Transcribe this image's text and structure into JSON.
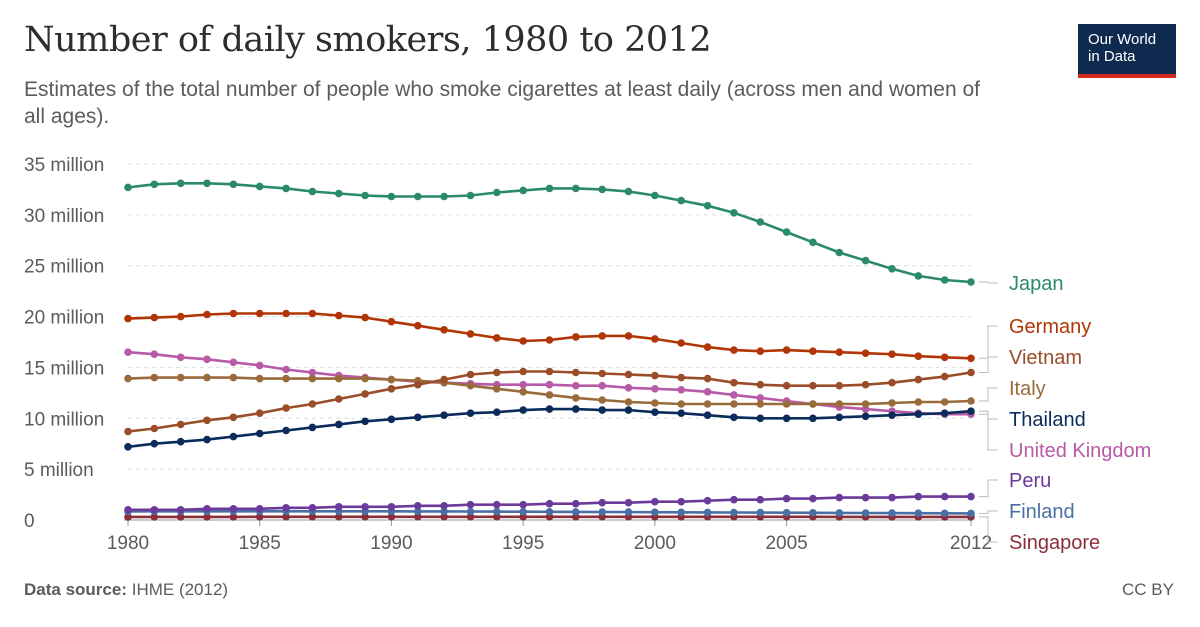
{
  "header": {
    "title": "Number of daily smokers, 1980 to 2012",
    "subtitle": "Estimates of the total number of people who smoke cigarettes at least daily (across men and women of all ages)."
  },
  "logo": {
    "line1": "Our World",
    "line2": "in Data"
  },
  "footer": {
    "source_label": "Data source:",
    "source_value": "IHME (2012)",
    "license": "CC BY"
  },
  "chart_data": {
    "type": "line",
    "title": "Number of daily smokers, 1980 to 2012",
    "xlabel": "",
    "ylabel": "",
    "xlim": [
      1980,
      2012
    ],
    "ylim": [
      0,
      35000000
    ],
    "x_ticks": [
      1980,
      1985,
      1990,
      1995,
      2000,
      2005,
      2012
    ],
    "x_tick_labels": [
      "1980",
      "1985",
      "1990",
      "1995",
      "2000",
      "2005",
      "2012"
    ],
    "y_ticks": [
      0,
      5000000,
      10000000,
      15000000,
      20000000,
      25000000,
      30000000,
      35000000
    ],
    "y_tick_labels": [
      "0",
      "5 million",
      "10 million",
      "15 million",
      "20 million",
      "25 million",
      "30 million",
      "35 million"
    ],
    "grid": "horizontal-dashed",
    "legend": "right, end labels",
    "x": [
      1980,
      1981,
      1982,
      1983,
      1984,
      1985,
      1986,
      1987,
      1988,
      1989,
      1990,
      1991,
      1992,
      1993,
      1994,
      1995,
      1996,
      1997,
      1998,
      1999,
      2000,
      2001,
      2002,
      2003,
      2004,
      2005,
      2006,
      2007,
      2008,
      2009,
      2010,
      2011,
      2012
    ],
    "series": [
      {
        "name": "Japan",
        "color": "#2a8a6a",
        "values": [
          32.7,
          33.0,
          33.1,
          33.1,
          33.0,
          32.8,
          32.6,
          32.3,
          32.1,
          31.9,
          31.8,
          31.8,
          31.8,
          31.9,
          32.2,
          32.4,
          32.6,
          32.6,
          32.5,
          32.3,
          31.9,
          31.4,
          30.9,
          30.2,
          29.3,
          28.3,
          27.3,
          26.3,
          25.5,
          24.7,
          24.0,
          23.6,
          23.4
        ]
      },
      {
        "name": "Germany",
        "color": "#b13507",
        "values": [
          19.8,
          19.9,
          20.0,
          20.2,
          20.3,
          20.3,
          20.3,
          20.3,
          20.1,
          19.9,
          19.5,
          19.1,
          18.7,
          18.3,
          17.9,
          17.6,
          17.7,
          18.0,
          18.1,
          18.1,
          17.8,
          17.4,
          17.0,
          16.7,
          16.6,
          16.7,
          16.6,
          16.5,
          16.4,
          16.3,
          16.1,
          16.0,
          15.9
        ]
      },
      {
        "name": "Vietnam",
        "color": "#9a4d28",
        "values": [
          8.7,
          9.0,
          9.4,
          9.8,
          10.1,
          10.5,
          11.0,
          11.4,
          11.9,
          12.4,
          12.9,
          13.3,
          13.8,
          14.3,
          14.5,
          14.6,
          14.6,
          14.5,
          14.4,
          14.3,
          14.2,
          14.0,
          13.9,
          13.5,
          13.3,
          13.2,
          13.2,
          13.2,
          13.3,
          13.5,
          13.8,
          14.1,
          14.5
        ]
      },
      {
        "name": "Italy",
        "color": "#9a6b3a",
        "values": [
          13.9,
          14.0,
          14.0,
          14.0,
          14.0,
          13.9,
          13.9,
          13.9,
          13.9,
          13.9,
          13.8,
          13.7,
          13.5,
          13.2,
          12.9,
          12.6,
          12.3,
          12.0,
          11.8,
          11.6,
          11.5,
          11.4,
          11.4,
          11.4,
          11.4,
          11.4,
          11.4,
          11.4,
          11.4,
          11.5,
          11.6,
          11.6,
          11.7
        ]
      },
      {
        "name": "Thailand",
        "color": "#0b2b5a",
        "values": [
          7.2,
          7.5,
          7.7,
          7.9,
          8.2,
          8.5,
          8.8,
          9.1,
          9.4,
          9.7,
          9.9,
          10.1,
          10.3,
          10.5,
          10.6,
          10.8,
          10.9,
          10.9,
          10.8,
          10.8,
          10.6,
          10.5,
          10.3,
          10.1,
          10.0,
          10.0,
          10.0,
          10.1,
          10.2,
          10.3,
          10.4,
          10.5,
          10.7
        ]
      },
      {
        "name": "United Kingdom",
        "color": "#b75aa8",
        "values": [
          16.5,
          16.3,
          16.0,
          15.8,
          15.5,
          15.2,
          14.8,
          14.5,
          14.2,
          14.0,
          13.8,
          13.6,
          13.5,
          13.4,
          13.3,
          13.3,
          13.3,
          13.2,
          13.2,
          13.0,
          12.9,
          12.8,
          12.6,
          12.3,
          12.0,
          11.7,
          11.4,
          11.1,
          10.9,
          10.7,
          10.5,
          10.4,
          10.4
        ]
      },
      {
        "name": "Peru",
        "color": "#6b3a9a",
        "values": [
          1.0,
          1.0,
          1.0,
          1.1,
          1.1,
          1.1,
          1.2,
          1.2,
          1.3,
          1.3,
          1.3,
          1.4,
          1.4,
          1.5,
          1.5,
          1.5,
          1.6,
          1.6,
          1.7,
          1.7,
          1.8,
          1.8,
          1.9,
          2.0,
          2.0,
          2.1,
          2.1,
          2.2,
          2.2,
          2.2,
          2.3,
          2.3,
          2.3
        ]
      },
      {
        "name": "Finland",
        "color": "#4a6fa5",
        "values": [
          0.85,
          0.86,
          0.86,
          0.86,
          0.86,
          0.86,
          0.86,
          0.86,
          0.86,
          0.86,
          0.86,
          0.85,
          0.85,
          0.84,
          0.83,
          0.82,
          0.81,
          0.8,
          0.79,
          0.78,
          0.77,
          0.76,
          0.75,
          0.74,
          0.73,
          0.72,
          0.71,
          0.7,
          0.69,
          0.68,
          0.67,
          0.66,
          0.65
        ]
      },
      {
        "name": "Singapore",
        "color": "#8b2e3a",
        "values": [
          0.3,
          0.3,
          0.3,
          0.3,
          0.3,
          0.31,
          0.31,
          0.31,
          0.31,
          0.31,
          0.31,
          0.31,
          0.31,
          0.31,
          0.31,
          0.31,
          0.31,
          0.31,
          0.31,
          0.31,
          0.31,
          0.31,
          0.31,
          0.31,
          0.31,
          0.31,
          0.31,
          0.3,
          0.3,
          0.3,
          0.3,
          0.3,
          0.3
        ]
      }
    ],
    "value_unit_multiplier": 1000000
  }
}
